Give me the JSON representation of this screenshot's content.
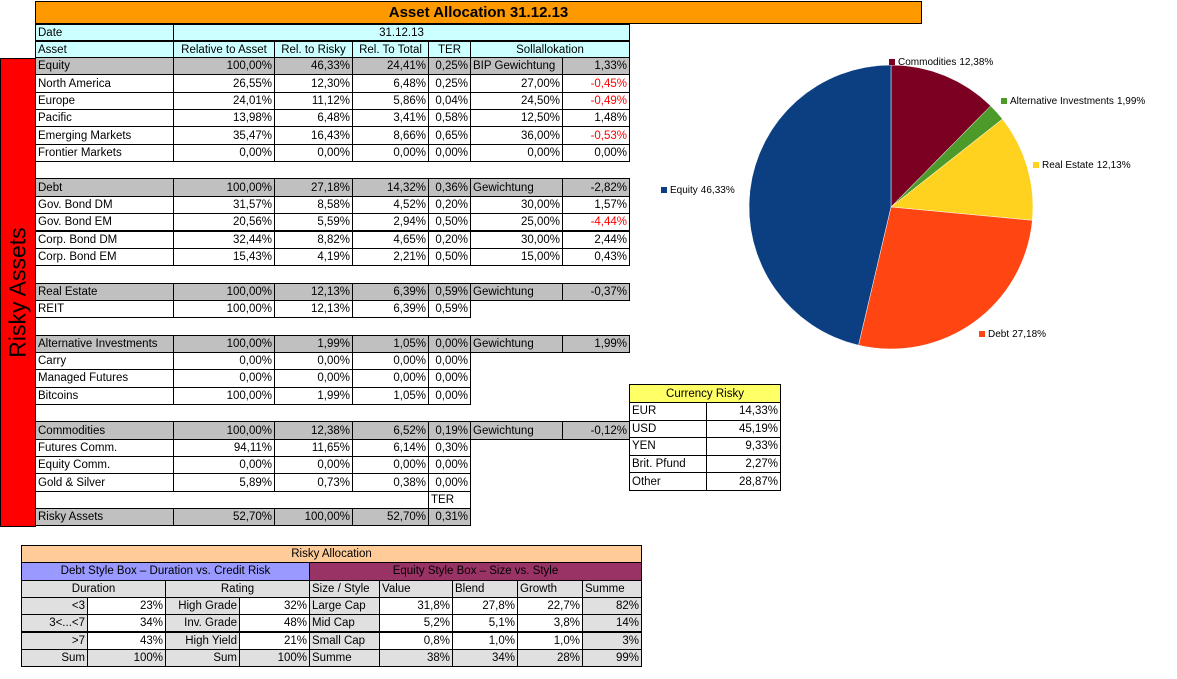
{
  "title": "Asset Allocation 31.12.13",
  "side_label": "Risky Assets",
  "main_table": {
    "date_row": [
      "Date",
      "31.12.13"
    ],
    "header": [
      "Asset",
      "Relative to Asset",
      "Rel. to Risky",
      "Rel. To Total",
      "TER",
      "Sollallokation"
    ],
    "rows": [
      [
        "Equity",
        "100,00%",
        "46,33%",
        "24,41%",
        "0,25%",
        "BIP Gewichtung",
        "1,33%"
      ],
      [
        "North America",
        "26,55%",
        "12,30%",
        "6,48%",
        "0,25%",
        "27,00%",
        "-0,45%"
      ],
      [
        "Europe",
        "24,01%",
        "11,12%",
        "5,86%",
        "0,04%",
        "24,50%",
        "-0,49%"
      ],
      [
        "Pacific",
        "13,98%",
        "6,48%",
        "3,41%",
        "0,58%",
        "12,50%",
        "1,48%"
      ],
      [
        "Emerging Markets",
        "35,47%",
        "16,43%",
        "8,66%",
        "0,65%",
        "36,00%",
        "-0,53%"
      ],
      [
        "Frontier Markets",
        "0,00%",
        "0,00%",
        "0,00%",
        "0,00%",
        "0,00%",
        "0,00%"
      ],
      [],
      [
        "Debt",
        "100,00%",
        "27,18%",
        "14,32%",
        "0,36%",
        "Gewichtung",
        "-2,82%"
      ],
      [
        "Gov. Bond DM",
        "31,57%",
        "8,58%",
        "4,52%",
        "0,20%",
        "30,00%",
        "1,57%"
      ],
      [
        "Gov. Bond EM",
        "20,56%",
        "5,59%",
        "2,94%",
        "0,50%",
        "25,00%",
        "-4,44%"
      ],
      [
        "Corp. Bond DM",
        "32,44%",
        "8,82%",
        "4,65%",
        "0,20%",
        "30,00%",
        "2,44%"
      ],
      [
        "Corp. Bond EM",
        "15,43%",
        "4,19%",
        "2,21%",
        "0,50%",
        "15,00%",
        "0,43%"
      ],
      [],
      [
        "Real Estate",
        "100,00%",
        "12,13%",
        "6,39%",
        "0,59%",
        "Gewichtung",
        "-0,37%"
      ],
      [
        "REIT",
        "100,00%",
        "12,13%",
        "6,39%",
        "0,59%"
      ],
      [],
      [
        "Alternative Investments",
        "100,00%",
        "1,99%",
        "1,05%",
        "0,00%",
        "Gewichtung",
        "1,99%"
      ],
      [
        "Carry",
        "0,00%",
        "0,00%",
        "0,00%",
        "0,00%"
      ],
      [
        "Managed Futures",
        "0,00%",
        "0,00%",
        "0,00%",
        "0,00%"
      ],
      [
        "Bitcoins",
        "100,00%",
        "1,99%",
        "1,05%",
        "0,00%"
      ],
      [],
      [
        "Commodities",
        "100,00%",
        "12,38%",
        "6,52%",
        "0,19%",
        "Gewichtung",
        "-0,12%"
      ],
      [
        "Futures Comm.",
        "94,11%",
        "11,65%",
        "6,14%",
        "0,30%"
      ],
      [
        "Equity Comm.",
        "0,00%",
        "0,00%",
        "0,00%",
        "0,00%"
      ],
      [
        "Gold & Silver",
        "5,89%",
        "0,73%",
        "0,38%",
        "0,00%"
      ],
      [
        null,
        null,
        null,
        null,
        "TER"
      ],
      [
        "Risky Assets",
        "52,70%",
        "100,00%",
        "52,70%",
        "0,31%"
      ]
    ]
  },
  "pie_chart": {
    "type": "pie",
    "names": [
      "Commodities",
      "Alternative Investments",
      "Real Estate",
      "Debt",
      "Equity"
    ],
    "values": [
      12.38,
      1.99,
      12.13,
      27.18,
      46.33
    ],
    "value_labels": [
      "12,38%",
      "1,99%",
      "12,13%",
      "27,18%",
      "46,33%"
    ],
    "colors": [
      "#7b0022",
      "#4c9a2a",
      "#ffd21f",
      "#ff4512",
      "#0b3f82"
    ]
  },
  "currency_table": {
    "title": "Currency Risky",
    "rows": [
      [
        "EUR",
        "14,33%"
      ],
      [
        "USD",
        "45,19%"
      ],
      [
        "YEN",
        "9,33%"
      ],
      [
        "Brit. Pfund",
        "2,27%"
      ],
      [
        "Other",
        "28,87%"
      ]
    ]
  },
  "allocation_table": {
    "title": "Risky Allocation",
    "debt_box": "Debt Style Box – Duration vs. Credit Risk",
    "equity_box": "Equity Style Box – Size vs. Style",
    "header": [
      "Duration",
      "Rating",
      "Size / Style",
      "Value",
      "Blend",
      "Growth",
      "Summe"
    ],
    "rows": [
      [
        "<3",
        "23%",
        "High Grade",
        "32%",
        "Large Cap",
        "31,8%",
        "27,8%",
        "22,7%",
        "82%"
      ],
      [
        "3<...<7",
        "34%",
        "Inv. Grade",
        "48%",
        "Mid Cap",
        "5,2%",
        "5,1%",
        "3,8%",
        "14%"
      ],
      [
        ">7",
        "43%",
        "High Yield",
        "21%",
        "Small Cap",
        "0,8%",
        "1,0%",
        "1,0%",
        "3%"
      ],
      [
        "Sum",
        "100%",
        "Sum",
        "100%",
        "Summe",
        "38%",
        "34%",
        "28%",
        "99%"
      ]
    ]
  }
}
